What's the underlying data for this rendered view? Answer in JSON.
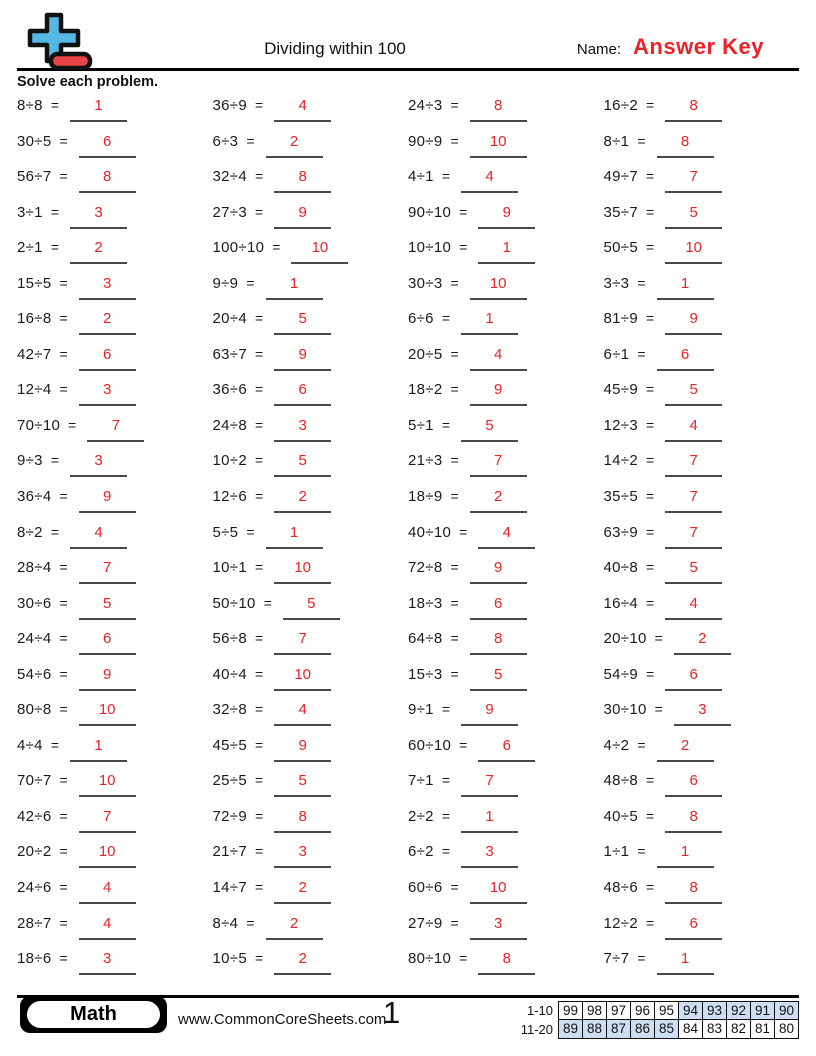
{
  "header": {
    "title": "Dividing within 100",
    "name_label": "Name:",
    "name_value": "Answer Key",
    "instruction": "Solve each problem."
  },
  "problems": {
    "columns": [
      [
        {
          "expr": "8÷8",
          "ans": "1"
        },
        {
          "expr": "30÷5",
          "ans": "6"
        },
        {
          "expr": "56÷7",
          "ans": "8"
        },
        {
          "expr": "3÷1",
          "ans": "3"
        },
        {
          "expr": "2÷1",
          "ans": "2"
        },
        {
          "expr": "15÷5",
          "ans": "3"
        },
        {
          "expr": "16÷8",
          "ans": "2"
        },
        {
          "expr": "42÷7",
          "ans": "6"
        },
        {
          "expr": "12÷4",
          "ans": "3"
        },
        {
          "expr": "70÷10",
          "ans": "7"
        },
        {
          "expr": "9÷3",
          "ans": "3"
        },
        {
          "expr": "36÷4",
          "ans": "9"
        },
        {
          "expr": "8÷2",
          "ans": "4"
        },
        {
          "expr": "28÷4",
          "ans": "7"
        },
        {
          "expr": "30÷6",
          "ans": "5"
        },
        {
          "expr": "24÷4",
          "ans": "6"
        },
        {
          "expr": "54÷6",
          "ans": "9"
        },
        {
          "expr": "80÷8",
          "ans": "10"
        },
        {
          "expr": "4÷4",
          "ans": "1"
        },
        {
          "expr": "70÷7",
          "ans": "10"
        },
        {
          "expr": "42÷6",
          "ans": "7"
        },
        {
          "expr": "20÷2",
          "ans": "10"
        },
        {
          "expr": "24÷6",
          "ans": "4"
        },
        {
          "expr": "28÷7",
          "ans": "4"
        },
        {
          "expr": "18÷6",
          "ans": "3"
        }
      ],
      [
        {
          "expr": "36÷9",
          "ans": "4"
        },
        {
          "expr": "6÷3",
          "ans": "2"
        },
        {
          "expr": "32÷4",
          "ans": "8"
        },
        {
          "expr": "27÷3",
          "ans": "9"
        },
        {
          "expr": "100÷10",
          "ans": "10"
        },
        {
          "expr": "9÷9",
          "ans": "1"
        },
        {
          "expr": "20÷4",
          "ans": "5"
        },
        {
          "expr": "63÷7",
          "ans": "9"
        },
        {
          "expr": "36÷6",
          "ans": "6"
        },
        {
          "expr": "24÷8",
          "ans": "3"
        },
        {
          "expr": "10÷2",
          "ans": "5"
        },
        {
          "expr": "12÷6",
          "ans": "2"
        },
        {
          "expr": "5÷5",
          "ans": "1"
        },
        {
          "expr": "10÷1",
          "ans": "10"
        },
        {
          "expr": "50÷10",
          "ans": "5"
        },
        {
          "expr": "56÷8",
          "ans": "7"
        },
        {
          "expr": "40÷4",
          "ans": "10"
        },
        {
          "expr": "32÷8",
          "ans": "4"
        },
        {
          "expr": "45÷5",
          "ans": "9"
        },
        {
          "expr": "25÷5",
          "ans": "5"
        },
        {
          "expr": "72÷9",
          "ans": "8"
        },
        {
          "expr": "21÷7",
          "ans": "3"
        },
        {
          "expr": "14÷7",
          "ans": "2"
        },
        {
          "expr": "8÷4",
          "ans": "2"
        },
        {
          "expr": "10÷5",
          "ans": "2"
        }
      ],
      [
        {
          "expr": "24÷3",
          "ans": "8"
        },
        {
          "expr": "90÷9",
          "ans": "10"
        },
        {
          "expr": "4÷1",
          "ans": "4"
        },
        {
          "expr": "90÷10",
          "ans": "9"
        },
        {
          "expr": "10÷10",
          "ans": "1"
        },
        {
          "expr": "30÷3",
          "ans": "10"
        },
        {
          "expr": "6÷6",
          "ans": "1"
        },
        {
          "expr": "20÷5",
          "ans": "4"
        },
        {
          "expr": "18÷2",
          "ans": "9"
        },
        {
          "expr": "5÷1",
          "ans": "5"
        },
        {
          "expr": "21÷3",
          "ans": "7"
        },
        {
          "expr": "18÷9",
          "ans": "2"
        },
        {
          "expr": "40÷10",
          "ans": "4"
        },
        {
          "expr": "72÷8",
          "ans": "9"
        },
        {
          "expr": "18÷3",
          "ans": "6"
        },
        {
          "expr": "64÷8",
          "ans": "8"
        },
        {
          "expr": "15÷3",
          "ans": "5"
        },
        {
          "expr": "9÷1",
          "ans": "9"
        },
        {
          "expr": "60÷10",
          "ans": "6"
        },
        {
          "expr": "7÷1",
          "ans": "7"
        },
        {
          "expr": "2÷2",
          "ans": "1"
        },
        {
          "expr": "6÷2",
          "ans": "3"
        },
        {
          "expr": "60÷6",
          "ans": "10"
        },
        {
          "expr": "27÷9",
          "ans": "3"
        },
        {
          "expr": "80÷10",
          "ans": "8"
        }
      ],
      [
        {
          "expr": "16÷2",
          "ans": "8"
        },
        {
          "expr": "8÷1",
          "ans": "8"
        },
        {
          "expr": "49÷7",
          "ans": "7"
        },
        {
          "expr": "35÷7",
          "ans": "5"
        },
        {
          "expr": "50÷5",
          "ans": "10"
        },
        {
          "expr": "3÷3",
          "ans": "1"
        },
        {
          "expr": "81÷9",
          "ans": "9"
        },
        {
          "expr": "6÷1",
          "ans": "6"
        },
        {
          "expr": "45÷9",
          "ans": "5"
        },
        {
          "expr": "12÷3",
          "ans": "4"
        },
        {
          "expr": "14÷2",
          "ans": "7"
        },
        {
          "expr": "35÷5",
          "ans": "7"
        },
        {
          "expr": "63÷9",
          "ans": "7"
        },
        {
          "expr": "40÷8",
          "ans": "5"
        },
        {
          "expr": "16÷4",
          "ans": "4"
        },
        {
          "expr": "20÷10",
          "ans": "2"
        },
        {
          "expr": "54÷9",
          "ans": "6"
        },
        {
          "expr": "30÷10",
          "ans": "3"
        },
        {
          "expr": "4÷2",
          "ans": "2"
        },
        {
          "expr": "48÷8",
          "ans": "6"
        },
        {
          "expr": "40÷5",
          "ans": "8"
        },
        {
          "expr": "1÷1",
          "ans": "1"
        },
        {
          "expr": "48÷6",
          "ans": "8"
        },
        {
          "expr": "12÷2",
          "ans": "6"
        },
        {
          "expr": "7÷7",
          "ans": "1"
        }
      ]
    ]
  },
  "footer": {
    "badge": "Math",
    "website": "www.CommonCoreSheets.com",
    "page": "1",
    "score_table": {
      "rows": [
        {
          "label": "1-10",
          "cells": [
            {
              "v": "99",
              "hl": false
            },
            {
              "v": "98",
              "hl": false
            },
            {
              "v": "97",
              "hl": false
            },
            {
              "v": "96",
              "hl": false
            },
            {
              "v": "95",
              "hl": false
            },
            {
              "v": "94",
              "hl": true
            },
            {
              "v": "93",
              "hl": true
            },
            {
              "v": "92",
              "hl": true
            },
            {
              "v": "91",
              "hl": true
            },
            {
              "v": "90",
              "hl": true
            }
          ]
        },
        {
          "label": "11-20",
          "cells": [
            {
              "v": "89",
              "hl": true
            },
            {
              "v": "88",
              "hl": true
            },
            {
              "v": "87",
              "hl": true
            },
            {
              "v": "86",
              "hl": true
            },
            {
              "v": "85",
              "hl": true
            },
            {
              "v": "84",
              "hl": false
            },
            {
              "v": "83",
              "hl": false
            },
            {
              "v": "82",
              "hl": false
            },
            {
              "v": "81",
              "hl": false
            },
            {
              "v": "80",
              "hl": false
            }
          ]
        }
      ]
    }
  },
  "colors": {
    "answer_red": "#ee2226",
    "score_highlight_blue": "#cddef2",
    "logo_blue": "#55b7e3",
    "logo_red": "#e74545"
  }
}
